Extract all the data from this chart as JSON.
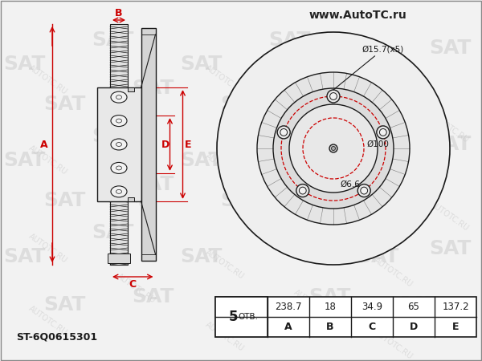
{
  "bg_color": "#f2f2f2",
  "line_color": "#1a1a1a",
  "red_color": "#cc0000",
  "table_headers": [
    "A",
    "B",
    "C",
    "D",
    "E"
  ],
  "table_values": [
    "238.7",
    "18",
    "34.9",
    "65",
    "137.2"
  ],
  "holes_label": "5 ОТВ.",
  "part_number": "ST-6Q0615301",
  "dim_hole_bolt": "Ø15.7(x5)",
  "dim_center": "Ø100",
  "dim_small": "Ø6.6",
  "watermark_sat": "www.AutoTC.ru",
  "sat_logo_color": "#d0d0d0",
  "wm_color": "#c8c8c8"
}
